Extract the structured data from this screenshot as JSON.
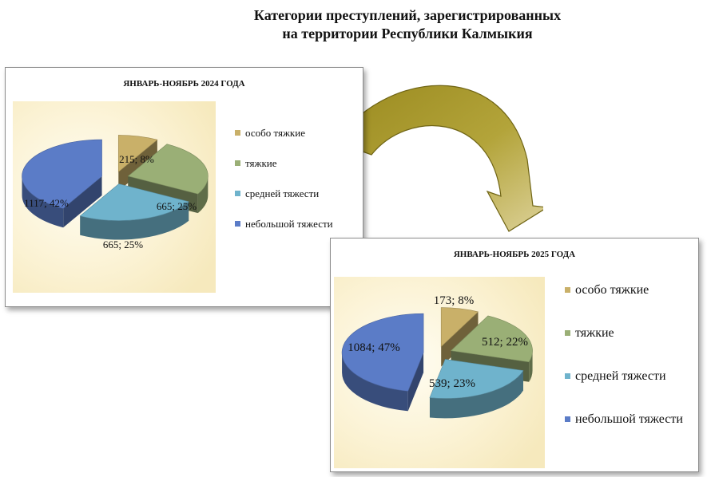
{
  "page": {
    "title_line1": "Категории преступлений, зарегистрированных",
    "title_line2": "на территории  Республики Калмыкия"
  },
  "colors": {
    "especially_grave": "#c9b069",
    "grave": "#9aaf76",
    "medium": "#6fb3cc",
    "minor": "#5b7cc7",
    "arrow": "#a99a2c",
    "plot_bg": "#f6e9bd"
  },
  "chart_data": [
    {
      "type": "pie",
      "title": "ЯНВАРЬ-НОЯБРЬ 2024 ГОДА",
      "legend_position": "right",
      "series": [
        {
          "name": "особо тяжкие",
          "value": 215,
          "percent": 8,
          "label": "215; 8%"
        },
        {
          "name": "тяжкие",
          "value": 665,
          "percent": 25,
          "label": "665; 25%"
        },
        {
          "name": "средней тяжести",
          "value": 665,
          "percent": 25,
          "label": "665; 25%"
        },
        {
          "name": "небольшой тяжести",
          "value": 1117,
          "percent": 42,
          "label": "1117; 42%"
        }
      ]
    },
    {
      "type": "pie",
      "title": "ЯНВАРЬ-НОЯБРЬ 2025 ГОДА",
      "legend_position": "right",
      "series": [
        {
          "name": "особо тяжкие",
          "value": 173,
          "percent": 8,
          "label": "173; 8%"
        },
        {
          "name": "тяжкие",
          "value": 512,
          "percent": 22,
          "label": "512; 22%"
        },
        {
          "name": "средней тяжести",
          "value": 539,
          "percent": 23,
          "label": "539; 23%"
        },
        {
          "name": "небольшой тяжести",
          "value": 1084,
          "percent": 47,
          "label": "1084; 47%"
        }
      ]
    }
  ]
}
